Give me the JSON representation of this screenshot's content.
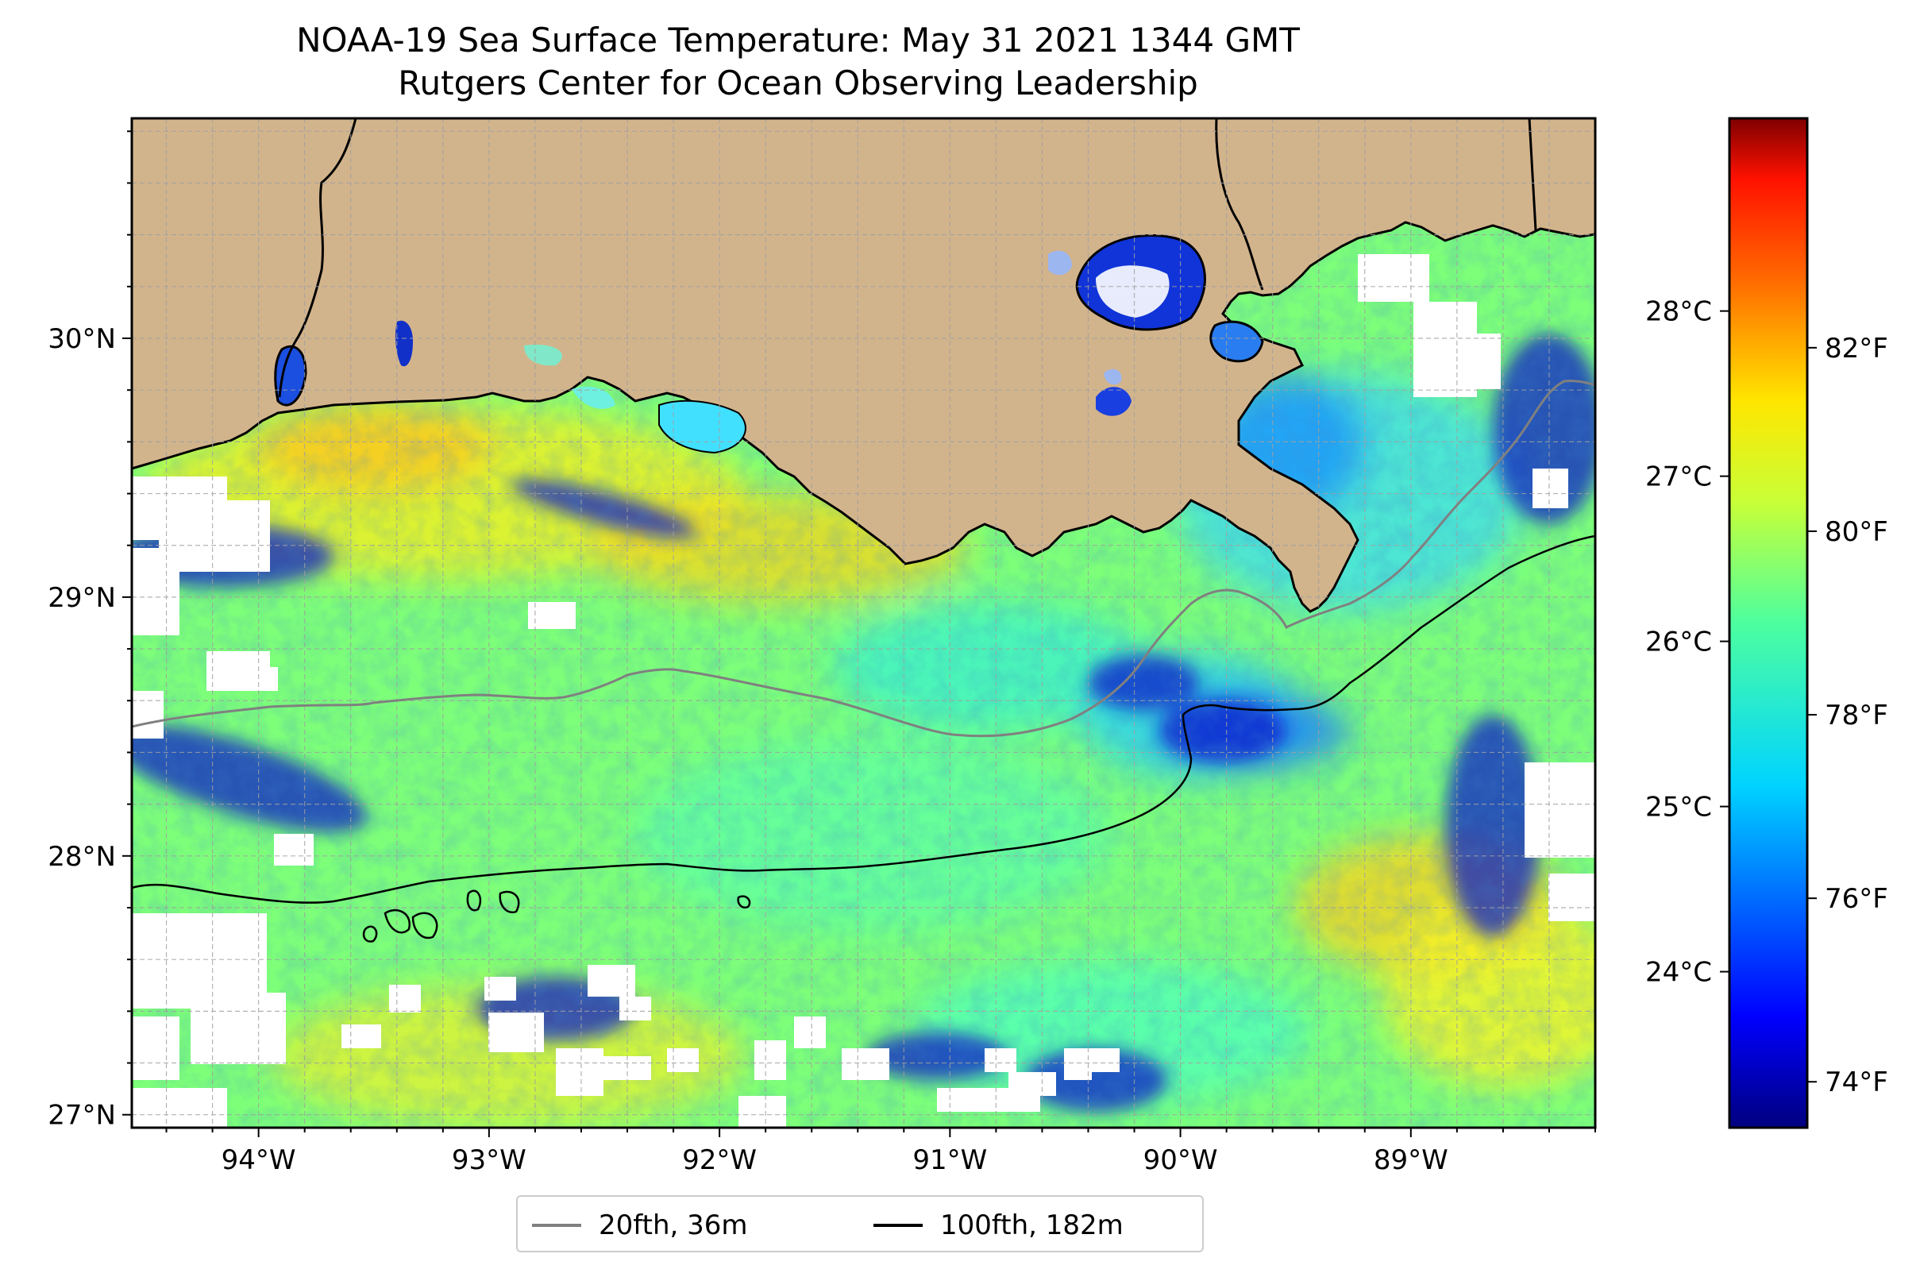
{
  "title": {
    "line1": "NOAA-19 Sea Surface Temperature: May 31 2021 1344 GMT",
    "line2": "Rutgers Center for Ocean Observing Leadership"
  },
  "map": {
    "lon_range": [
      -94.55,
      -88.2
    ],
    "lat_range": [
      26.95,
      30.85
    ],
    "land_color": "#d2b48c",
    "missing_color": "#ffffff",
    "lon_ticks": [
      {
        "value": -94,
        "label": "94°W"
      },
      {
        "value": -93,
        "label": "93°W"
      },
      {
        "value": -92,
        "label": "92°W"
      },
      {
        "value": -91,
        "label": "91°W"
      },
      {
        "value": -90,
        "label": "90°W"
      },
      {
        "value": -89,
        "label": "89°W"
      }
    ],
    "lat_ticks": [
      {
        "value": 27,
        "label": "27°N"
      },
      {
        "value": 28,
        "label": "28°N"
      },
      {
        "value": 29,
        "label": "29°N"
      },
      {
        "value": 30,
        "label": "30°N"
      }
    ],
    "gridlines": "dashed every 0.2°"
  },
  "colorbar": {
    "colormap": "jet",
    "range_f": [
      73.5,
      84.5
    ],
    "celsius_ticks": [
      {
        "value": 24,
        "label": "24°C"
      },
      {
        "value": 25,
        "label": "25°C"
      },
      {
        "value": 26,
        "label": "26°C"
      },
      {
        "value": 27,
        "label": "27°C"
      },
      {
        "value": 28,
        "label": "28°C"
      }
    ],
    "fahrenheit_ticks": [
      {
        "value": 74,
        "label": "74°F"
      },
      {
        "value": 76,
        "label": "76°F"
      },
      {
        "value": 78,
        "label": "78°F"
      },
      {
        "value": 80,
        "label": "80°F"
      },
      {
        "value": 82,
        "label": "82°F"
      }
    ]
  },
  "legend": {
    "items": [
      {
        "label": "20fth, 36m",
        "color": "#808080"
      },
      {
        "label": "100fth, 182m",
        "color": "#000000"
      }
    ]
  }
}
